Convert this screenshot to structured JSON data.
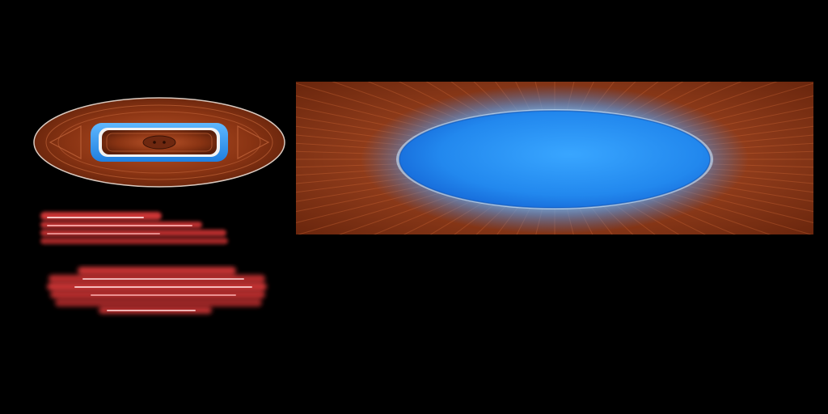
{
  "sheet": {
    "background": "#000000"
  },
  "palette": {
    "wood_dark": "#5a1f0a",
    "wood_mid": "#8a3413",
    "wood_light": "#b9542a",
    "blue_core": "#2a9bff",
    "blue_edge": "#1669d8",
    "blue_glow": "#8fd0ff",
    "red_glow": "#e23a3a",
    "red_bright": "#ff8a8a",
    "outline": "#d9c9bf"
  },
  "sprites": [
    {
      "name": "surfboard-emblem",
      "icon": "oval-board-icon"
    },
    {
      "name": "red-glow-strip-a",
      "icon": "glow-bar-icon"
    },
    {
      "name": "red-glow-strip-b",
      "icon": "glow-bar-icon"
    },
    {
      "name": "blue-portal-panel",
      "icon": "portal-oval-icon"
    }
  ]
}
